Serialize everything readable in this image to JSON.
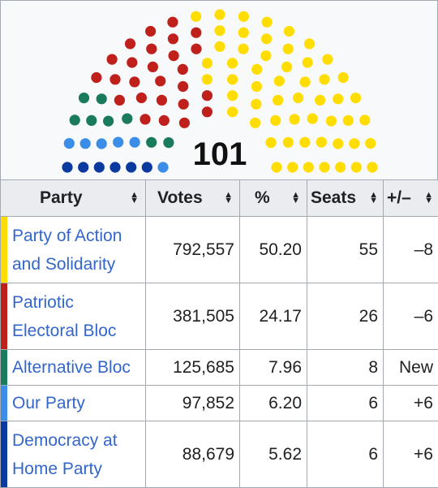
{
  "seat_chart": {
    "total_seats": "101",
    "parties": [
      {
        "name": "Party of Action and Solidarity",
        "seats": 55,
        "color": "#ffdd00"
      },
      {
        "name": "Patriotic Electoral Bloc",
        "seats": 26,
        "color": "#c0201c"
      },
      {
        "name": "Alternative Bloc",
        "seats": 8,
        "color": "#1a7a5c"
      },
      {
        "name": "Our Party",
        "seats": 6,
        "color": "#3b8ee8"
      },
      {
        "name": "Democracy at Home Party",
        "seats": 6,
        "color": "#0a3aa0"
      }
    ]
  },
  "table": {
    "headers": {
      "party": "Party",
      "votes": "Votes",
      "percent": "%",
      "seats": "Seats",
      "change": "+/–"
    },
    "rows": [
      {
        "party": "Party of Action and Solidarity",
        "color": "#ffdd00",
        "votes": "792,557",
        "percent": "50.20",
        "seats": "55",
        "change": "–8"
      },
      {
        "party": "Patriotic Electoral Bloc",
        "color": "#c0201c",
        "votes": "381,505",
        "percent": "24.17",
        "seats": "26",
        "change": "–6"
      },
      {
        "party": "Alternative Bloc",
        "color": "#1a7a5c",
        "votes": "125,685",
        "percent": "7.96",
        "seats": "8",
        "change": "New"
      },
      {
        "party": "Our Party",
        "color": "#3b8ee8",
        "votes": "97,852",
        "percent": "6.20",
        "seats": "6",
        "change": "+6"
      },
      {
        "party": "Democracy at Home Party",
        "color": "#0a3aa0",
        "votes": "88,679",
        "percent": "5.62",
        "seats": "6",
        "change": "+6"
      }
    ]
  }
}
